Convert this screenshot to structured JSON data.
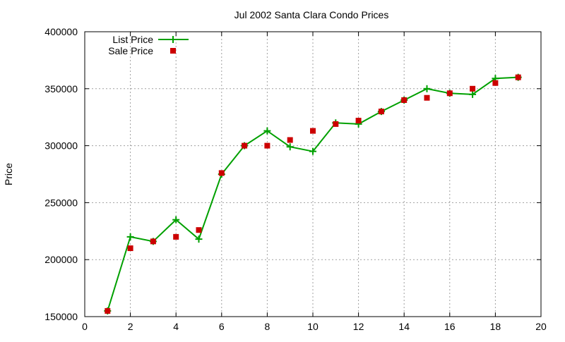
{
  "chart_data": {
    "type": "line",
    "title": "Jul 2002 Santa Clara Condo Prices",
    "xlabel": "",
    "ylabel": "Price",
    "xlim": [
      0,
      20
    ],
    "ylim": [
      150000,
      400000
    ],
    "x_ticks": [
      0,
      2,
      4,
      6,
      8,
      10,
      12,
      14,
      16,
      18,
      20
    ],
    "y_ticks": [
      150000,
      200000,
      250000,
      300000,
      350000,
      400000
    ],
    "grid": true,
    "legend_position": "top-left",
    "series": [
      {
        "name": "List Price",
        "style": "line-with-plus-markers",
        "color": "#00a000",
        "x": [
          1,
          2,
          3,
          4,
          5,
          6,
          7,
          8,
          9,
          10,
          11,
          12,
          13,
          14,
          15,
          16,
          17,
          18,
          19
        ],
        "y": [
          155000,
          220000,
          216000,
          235000,
          218000,
          275000,
          300000,
          313000,
          299000,
          295000,
          320000,
          319000,
          330000,
          340000,
          350000,
          346000,
          345000,
          359000,
          360000
        ]
      },
      {
        "name": "Sale Price",
        "style": "square-markers",
        "color": "#cc0000",
        "x": [
          1,
          2,
          3,
          4,
          5,
          6,
          7,
          8,
          9,
          10,
          11,
          12,
          13,
          14,
          15,
          16,
          17,
          18,
          19
        ],
        "y": [
          155000,
          210000,
          216000,
          220000,
          226000,
          276000,
          300000,
          300000,
          305000,
          313000,
          319000,
          322000,
          330000,
          340000,
          342000,
          346000,
          350000,
          355000,
          360000
        ]
      }
    ]
  }
}
